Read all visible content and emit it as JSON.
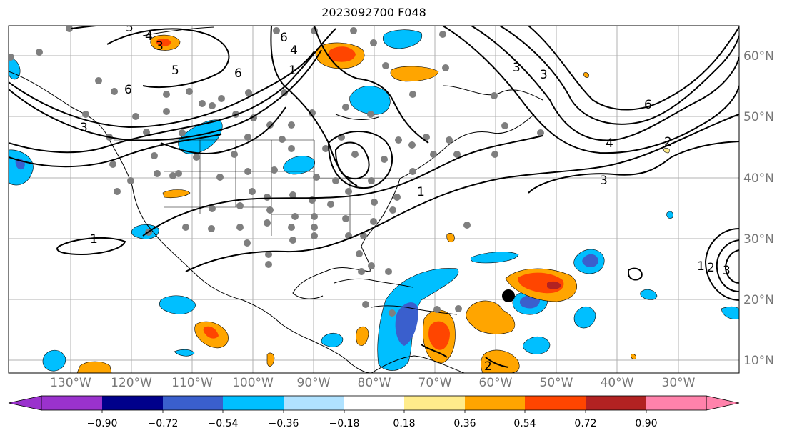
{
  "title": "2023092700 F048",
  "lat_labels": [
    "60°N",
    "50°N",
    "40°N",
    "30°N",
    "20°N",
    "10°N"
  ],
  "lon_labels": [
    "130°W",
    "120°W",
    "110°W",
    "100°W",
    "90°W",
    "80°W",
    "70°W",
    "60°W",
    "50°W",
    "40°W",
    "30°W"
  ],
  "colorbar": {
    "ticks": [
      "−0.90",
      "−0.72",
      "−0.54",
      "−0.36",
      "−0.18",
      "0.18",
      "0.36",
      "0.54",
      "0.72",
      "0.90"
    ],
    "colors": [
      "#9a32cd",
      "#00008b",
      "#3a5fcd",
      "#00bfff",
      "#b0e2ff",
      "#ffffff",
      "#ffec8b",
      "#ffa500",
      "#ff4500",
      "#b22222",
      "#ff82ab"
    ]
  },
  "contour_labels": [
    "5",
    "4",
    "3",
    "6",
    "5",
    "6",
    "3",
    "6",
    "4",
    "1",
    "3",
    "3",
    "6",
    "2",
    "3",
    "4",
    "1",
    "1",
    "1",
    "2",
    "3",
    "2"
  ],
  "marker_colors": {
    "station": "#7f7f7f",
    "storm_center": "#000000"
  }
}
